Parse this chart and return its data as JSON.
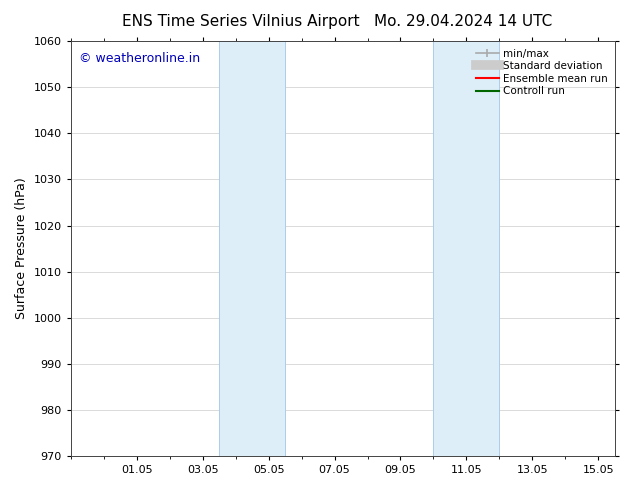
{
  "title_left": "ENS Time Series Vilnius Airport",
  "title_right": "Mo. 29.04.2024 14 UTC",
  "ylabel": "Surface Pressure (hPa)",
  "ylim": [
    970,
    1060
  ],
  "yticks": [
    970,
    980,
    990,
    1000,
    1010,
    1020,
    1030,
    1040,
    1050,
    1060
  ],
  "xlim": [
    0,
    16.5
  ],
  "xtick_labels": [
    "01.05",
    "03.05",
    "05.05",
    "07.05",
    "09.05",
    "11.05",
    "13.05",
    "15.05"
  ],
  "xtick_positions": [
    2,
    4,
    6,
    8,
    10,
    12,
    14,
    16
  ],
  "shaded_bands": [
    {
      "x_start": 4.5,
      "x_end": 6.5
    },
    {
      "x_start": 11.0,
      "x_end": 13.0
    }
  ],
  "shaded_color": "#ddeef8",
  "band_edge_color": "#aaccee",
  "watermark_text": "© weatheronline.in",
  "watermark_color": "#0000bb",
  "watermark_fontsize": 9,
  "legend_items": [
    {
      "label": "min/max",
      "color": "#aaaaaa",
      "lw": 1.2,
      "ls": "-",
      "style": "errorbar"
    },
    {
      "label": "Standard deviation",
      "color": "#cccccc",
      "lw": 7,
      "ls": "-",
      "style": "bar"
    },
    {
      "label": "Ensemble mean run",
      "color": "#ff0000",
      "lw": 1.5,
      "ls": "-",
      "style": "line"
    },
    {
      "label": "Controll run",
      "color": "#006600",
      "lw": 1.5,
      "ls": "-",
      "style": "line"
    }
  ],
  "background_color": "#ffffff",
  "grid_color": "#cccccc",
  "tick_label_fontsize": 8,
  "axis_label_fontsize": 9,
  "title_fontsize": 11
}
